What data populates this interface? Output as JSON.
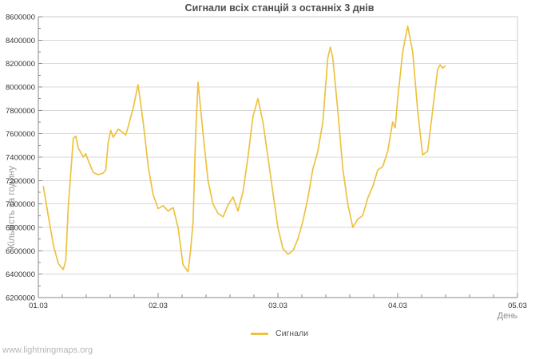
{
  "header": {
    "title": "Сигнали всіх станцій з останніх 3 днів"
  },
  "footer": {
    "watermark": "www.lightningmaps.org"
  },
  "legend": {
    "items": [
      {
        "label": "Сигнали",
        "color": "#edc240"
      }
    ]
  },
  "colors": {
    "background": "#ffffff",
    "grid": "#d8d8d8",
    "border": "#cccccc",
    "axis": "#888888",
    "tick_label": "#333333",
    "title": "#4d4d4d",
    "axis_title": "#9a9a9a",
    "legend_text": "#545454",
    "watermark": "#b5b5b5",
    "series": "#edc240"
  },
  "chart_data": {
    "type": "line",
    "title": "Сигнали всіх станцій з останніх 3 днів",
    "xlabel": "День",
    "ylabel": "Кількість за годину",
    "xlim": [
      1,
      5
    ],
    "ylim": [
      6200000,
      8600000
    ],
    "y_tick_step": 200000,
    "y_minor_step": 100000,
    "x_minor_step": 0.2,
    "grid": "horizontal-only",
    "legend_position": "bottom-center",
    "x_ticks": [
      {
        "pos": 1,
        "label": "01.03"
      },
      {
        "pos": 2,
        "label": "02.03"
      },
      {
        "pos": 3,
        "label": "03.03"
      },
      {
        "pos": 4,
        "label": "04.03"
      },
      {
        "pos": 5,
        "label": "05.03"
      }
    ],
    "series": [
      {
        "name": "Сигнали",
        "color": "#edc240",
        "points": [
          [
            1.042,
            7150000
          ],
          [
            1.083,
            6900000
          ],
          [
            1.125,
            6650000
          ],
          [
            1.167,
            6490000
          ],
          [
            1.208,
            6440000
          ],
          [
            1.229,
            6520000
          ],
          [
            1.25,
            6980000
          ],
          [
            1.292,
            7560000
          ],
          [
            1.313,
            7580000
          ],
          [
            1.333,
            7480000
          ],
          [
            1.375,
            7400000
          ],
          [
            1.396,
            7430000
          ],
          [
            1.417,
            7370000
          ],
          [
            1.458,
            7270000
          ],
          [
            1.5,
            7250000
          ],
          [
            1.542,
            7265000
          ],
          [
            1.563,
            7290000
          ],
          [
            1.583,
            7520000
          ],
          [
            1.604,
            7630000
          ],
          [
            1.625,
            7570000
          ],
          [
            1.667,
            7640000
          ],
          [
            1.708,
            7610000
          ],
          [
            1.729,
            7590000
          ],
          [
            1.75,
            7660000
          ],
          [
            1.792,
            7820000
          ],
          [
            1.833,
            8020000
          ],
          [
            1.875,
            7700000
          ],
          [
            1.917,
            7320000
          ],
          [
            1.958,
            7080000
          ],
          [
            2.0,
            6960000
          ],
          [
            2.042,
            6985000
          ],
          [
            2.083,
            6940000
          ],
          [
            2.125,
            6970000
          ],
          [
            2.167,
            6800000
          ],
          [
            2.208,
            6480000
          ],
          [
            2.25,
            6420000
          ],
          [
            2.271,
            6600000
          ],
          [
            2.292,
            6850000
          ],
          [
            2.313,
            7600000
          ],
          [
            2.333,
            8040000
          ],
          [
            2.375,
            7600000
          ],
          [
            2.417,
            7200000
          ],
          [
            2.458,
            7000000
          ],
          [
            2.5,
            6920000
          ],
          [
            2.542,
            6890000
          ],
          [
            2.583,
            6990000
          ],
          [
            2.625,
            7060000
          ],
          [
            2.667,
            6940000
          ],
          [
            2.708,
            7100000
          ],
          [
            2.75,
            7400000
          ],
          [
            2.792,
            7750000
          ],
          [
            2.833,
            7900000
          ],
          [
            2.875,
            7700000
          ],
          [
            2.917,
            7400000
          ],
          [
            2.958,
            7100000
          ],
          [
            3.0,
            6800000
          ],
          [
            3.042,
            6620000
          ],
          [
            3.083,
            6570000
          ],
          [
            3.125,
            6600000
          ],
          [
            3.167,
            6700000
          ],
          [
            3.208,
            6850000
          ],
          [
            3.25,
            7050000
          ],
          [
            3.292,
            7300000
          ],
          [
            3.333,
            7450000
          ],
          [
            3.375,
            7700000
          ],
          [
            3.417,
            8250000
          ],
          [
            3.438,
            8340000
          ],
          [
            3.458,
            8250000
          ],
          [
            3.5,
            7800000
          ],
          [
            3.542,
            7300000
          ],
          [
            3.583,
            7000000
          ],
          [
            3.625,
            6800000
          ],
          [
            3.667,
            6870000
          ],
          [
            3.708,
            6900000
          ],
          [
            3.75,
            7050000
          ],
          [
            3.792,
            7150000
          ],
          [
            3.833,
            7290000
          ],
          [
            3.875,
            7320000
          ],
          [
            3.917,
            7450000
          ],
          [
            3.958,
            7700000
          ],
          [
            3.979,
            7650000
          ],
          [
            4.0,
            7900000
          ],
          [
            4.042,
            8300000
          ],
          [
            4.083,
            8520000
          ],
          [
            4.125,
            8300000
          ],
          [
            4.167,
            7800000
          ],
          [
            4.208,
            7420000
          ],
          [
            4.25,
            7450000
          ],
          [
            4.292,
            7800000
          ],
          [
            4.333,
            8150000
          ],
          [
            4.354,
            8190000
          ],
          [
            4.375,
            8160000
          ],
          [
            4.396,
            8180000
          ]
        ]
      }
    ]
  }
}
